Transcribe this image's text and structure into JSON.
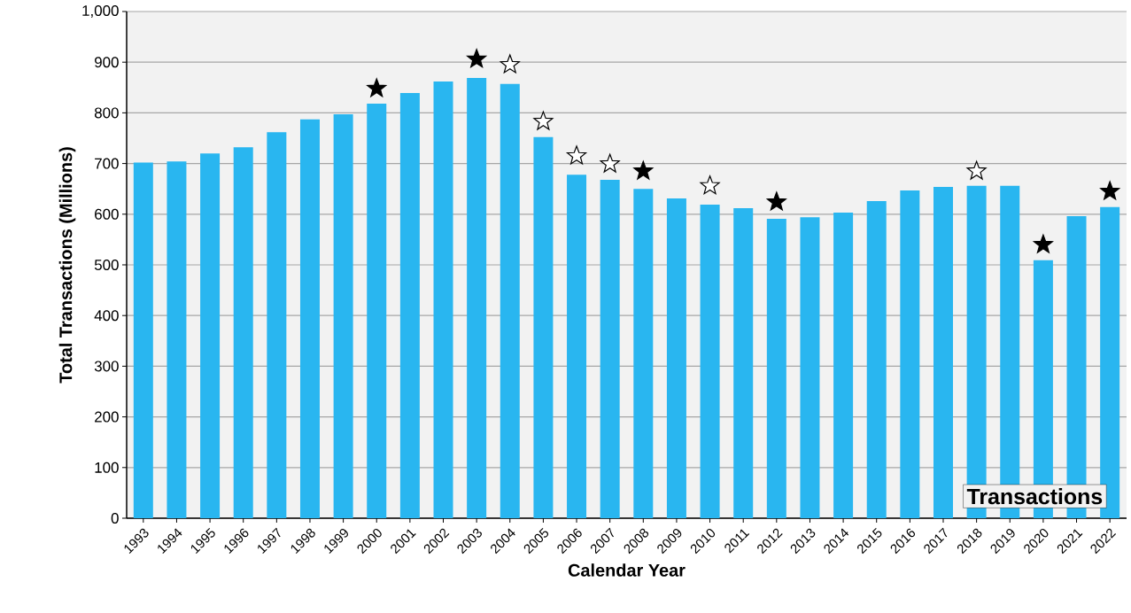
{
  "chart_data": {
    "type": "bar",
    "title": "Transactions",
    "xlabel": "Calendar Year",
    "ylabel": "Total Transactions (Millions)",
    "categories": [
      "1993",
      "1994",
      "1995",
      "1996",
      "1997",
      "1998",
      "1999",
      "2000",
      "2001",
      "2002",
      "2003",
      "2004",
      "2005",
      "2006",
      "2007",
      "2008",
      "2009",
      "2010",
      "2011",
      "2012",
      "2013",
      "2014",
      "2015",
      "2016",
      "2017",
      "2018",
      "2019",
      "2020",
      "2021",
      "2022"
    ],
    "series": [
      {
        "color": "#29b6f0",
        "values": [
          702,
          704,
          720,
          732,
          762,
          787,
          797,
          818,
          839,
          862,
          869,
          857,
          752,
          678,
          668,
          650,
          631,
          619,
          612,
          591,
          594,
          603,
          626,
          647,
          654,
          656,
          656,
          509,
          596,
          614
        ]
      },
      {
        "type": "scatter",
        "color": "#000000",
        "values": [
          null,
          null,
          null,
          null,
          null,
          null,
          null,
          848,
          null,
          null,
          906,
          null,
          null,
          null,
          null,
          685,
          null,
          null,
          null,
          624,
          null,
          null,
          null,
          null,
          null,
          null,
          null,
          540,
          null,
          645
        ]
      },
      {
        "type": "scatter",
        "color": "#ffffff",
        "values": [
          null,
          null,
          null,
          null,
          null,
          null,
          null,
          null,
          null,
          null,
          null,
          895,
          783,
          715,
          699,
          null,
          null,
          656,
          null,
          null,
          null,
          null,
          null,
          null,
          null,
          685,
          null,
          null,
          null,
          null
        ]
      }
    ],
    "marker": "star",
    "grid": "y",
    "ylim": [
      0,
      1000
    ],
    "yticks": [
      0,
      100,
      200,
      300,
      400,
      500,
      600,
      700,
      800,
      900,
      {
        "value": 1000,
        "label": "1,000"
      }
    ]
  }
}
